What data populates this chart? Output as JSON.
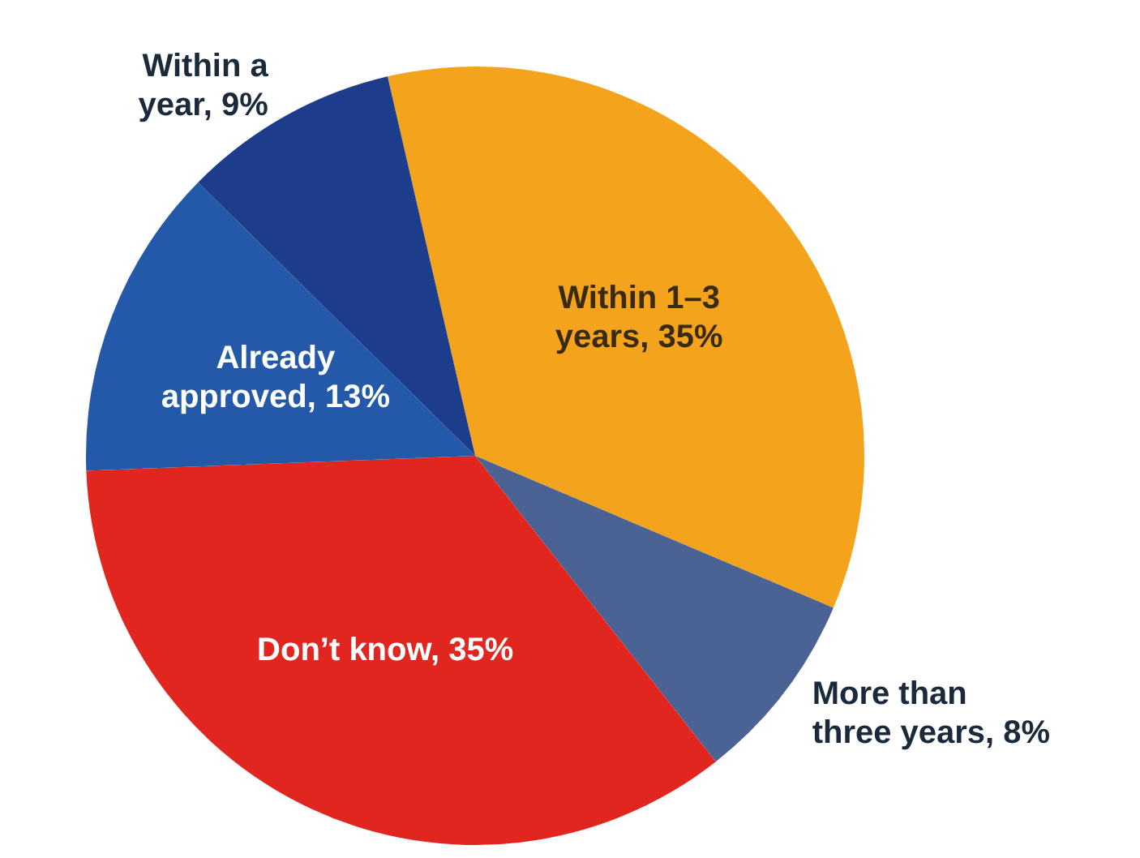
{
  "chart_data": {
    "type": "pie",
    "categories": [
      "Within 1–3 years",
      "More than three years",
      "Don’t know",
      "Already approved",
      "Within a year"
    ],
    "values": [
      35,
      8,
      35,
      13,
      9
    ],
    "value_labels": [
      "35%",
      "8%",
      "35%",
      "13%",
      "9%"
    ],
    "colors": [
      "#f4a31c",
      "#4a6294",
      "#e1251f",
      "#2458a8",
      "#1d3c8c"
    ]
  }
}
